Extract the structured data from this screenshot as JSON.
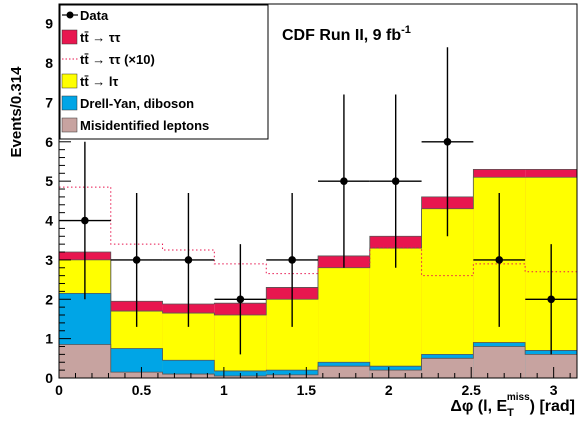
{
  "chart_data": {
    "type": "bar",
    "title": "CDF Run II, 9 fb",
    "title_superscript": "-1",
    "xlabel": {
      "prefix": "Δφ (l, E",
      "sub": "T",
      "sup": "miss",
      "suffix": ")  [rad]"
    },
    "ylabel": "Events/0.314",
    "xlim": [
      0,
      3.1416
    ],
    "ylim": [
      0,
      9.5
    ],
    "bin_width": 0.314,
    "bin_edges": [
      0,
      0.314,
      0.628,
      0.942,
      1.257,
      1.571,
      1.885,
      2.199,
      2.513,
      2.827,
      3.1416
    ],
    "x_ticks": [
      "0",
      "0.5",
      "1",
      "1.5",
      "2",
      "2.5",
      "3"
    ],
    "x_tick_values": [
      0,
      0.5,
      1,
      1.5,
      2,
      2.5,
      3
    ],
    "y_ticks": [
      "0",
      "1",
      "2",
      "3",
      "4",
      "5",
      "6",
      "7",
      "8",
      "9"
    ],
    "y_tick_values": [
      0,
      1,
      2,
      3,
      4,
      5,
      6,
      7,
      8,
      9
    ],
    "stack": [
      {
        "name": "Misidentified leptons",
        "color": "#c7a3a0",
        "cumulative_top": [
          0.85,
          0.15,
          0.1,
          0.05,
          0.08,
          0.3,
          0.2,
          0.5,
          0.8,
          0.6
        ]
      },
      {
        "name": "Drell-Yan, diboson",
        "color": "#00a5e6",
        "cumulative_top": [
          2.15,
          0.75,
          0.45,
          0.18,
          0.2,
          0.4,
          0.3,
          0.6,
          0.9,
          0.7
        ]
      },
      {
        "name": "tt̄ → lτ",
        "color": "#ffff00",
        "cumulative_top": [
          3.0,
          1.7,
          1.65,
          1.6,
          2.0,
          2.8,
          3.3,
          4.3,
          5.1,
          5.1
        ]
      },
      {
        "name": "tt̄ → ττ",
        "color": "#e8164f",
        "cumulative_top": [
          3.2,
          1.95,
          1.88,
          1.9,
          2.3,
          3.1,
          3.6,
          4.6,
          5.3,
          5.3
        ]
      }
    ],
    "ditau_x10": {
      "name": "tt̄ → ττ (×10)",
      "color": "#e8164f",
      "values": [
        4.85,
        3.4,
        3.25,
        2.9,
        2.65,
        2.85,
        3.3,
        2.6,
        2.9,
        2.7
      ]
    },
    "data": {
      "name": "Data",
      "x": [
        0.157,
        0.471,
        0.785,
        1.1,
        1.414,
        1.728,
        2.042,
        2.356,
        2.67,
        2.985
      ],
      "y": [
        4,
        3,
        3,
        2,
        3,
        5,
        5,
        6,
        3,
        2
      ],
      "err_low": [
        2.0,
        1.7,
        1.7,
        1.4,
        1.7,
        2.2,
        2.2,
        2.4,
        1.7,
        1.4
      ],
      "err_high": [
        2.0,
        1.7,
        1.7,
        1.4,
        1.7,
        2.2,
        2.2,
        2.4,
        1.7,
        1.4
      ]
    },
    "legend": {
      "placement": "top-left",
      "entries": [
        {
          "label": "Data",
          "kind": "marker"
        },
        {
          "label": "tt̄ → ττ",
          "kind": "fill",
          "color": "#e8164f"
        },
        {
          "label": "tt̄ → ττ (×10)",
          "kind": "dotted",
          "color": "#e8164f"
        },
        {
          "label": "tt̄ → lτ",
          "kind": "fill",
          "color": "#ffff00"
        },
        {
          "label": "Drell-Yan, diboson",
          "kind": "fill",
          "color": "#00a5e6"
        },
        {
          "label": "Misidentified leptons",
          "kind": "fill",
          "color": "#c7a3a0"
        }
      ]
    }
  }
}
